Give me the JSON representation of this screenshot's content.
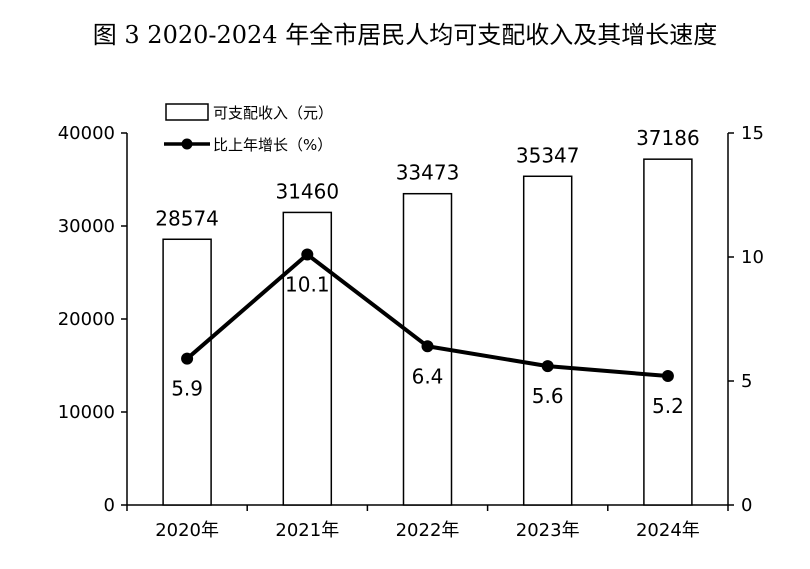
{
  "chart_data": {
    "type": "bar",
    "title": "图 3 2020-2024 年全市居民人均可支配收入及其增长速度",
    "categories": [
      "2020年",
      "2021年",
      "2022年",
      "2023年",
      "2024年"
    ],
    "series": [
      {
        "name": "可支配收入（元）",
        "type": "bar",
        "axis": "left",
        "values": [
          28574,
          31460,
          33473,
          35347,
          37186
        ],
        "color": "#ffffff",
        "edge_color": "#000000"
      },
      {
        "name": "比上年增长（%）",
        "type": "line",
        "axis": "right",
        "values": [
          5.9,
          10.1,
          6.4,
          5.6,
          5.2
        ],
        "color": "#000000"
      }
    ],
    "y_left": {
      "ylim": [
        0,
        40000
      ],
      "ticks": [
        0,
        10000,
        20000,
        30000,
        40000
      ]
    },
    "y_right": {
      "ylim": [
        0,
        15
      ],
      "ticks": [
        0,
        5,
        10,
        15
      ]
    },
    "legend": "top-left",
    "grid": false
  }
}
